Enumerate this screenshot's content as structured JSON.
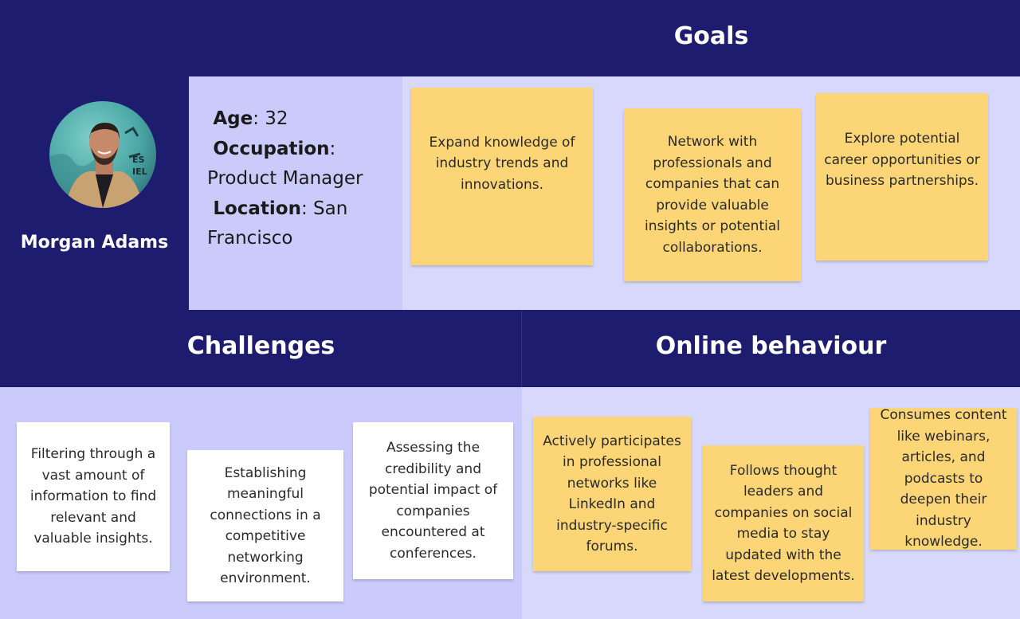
{
  "persona": {
    "name": "Morgan Adams",
    "avatar_icon": "person-avatar-icon",
    "age_label": "Age",
    "age_value": ": 32",
    "occupation_label": "Occupation",
    "occupation_sep": ":",
    "occupation_value": "Product Manager",
    "location_label": "Location",
    "location_value": ": San",
    "location_value_cont": "Francisco"
  },
  "goals": {
    "title": "Goals",
    "notes": [
      "Expand knowledge of industry trends and innovations.",
      "Network with professionals and companies that can provide valuable insights or potential collaborations.",
      "Explore potential career opportunities or business partnerships."
    ]
  },
  "challenges": {
    "title": "Challenges",
    "notes": [
      "Filtering through a vast amount of information to find relevant and valuable insights.",
      "Establishing meaningful connections in a competitive networking environment.",
      "Assessing the credibility and potential impact of companies encountered at conferences."
    ]
  },
  "online": {
    "title": "Online behaviour",
    "notes": [
      "Actively participates in professional networks like LinkedIn and industry-specific forums.",
      "Follows thought leaders and companies on social media to stay updated with the latest developments.",
      "Consumes content like webinars, articles, and podcasts to deepen their industry knowledge."
    ]
  },
  "colors": {
    "navy": "#1e1c6e",
    "sticky_yellow": "#fcd577",
    "panel_lavender": "#cbcbfb",
    "panel_light": "#d8d8fc"
  }
}
